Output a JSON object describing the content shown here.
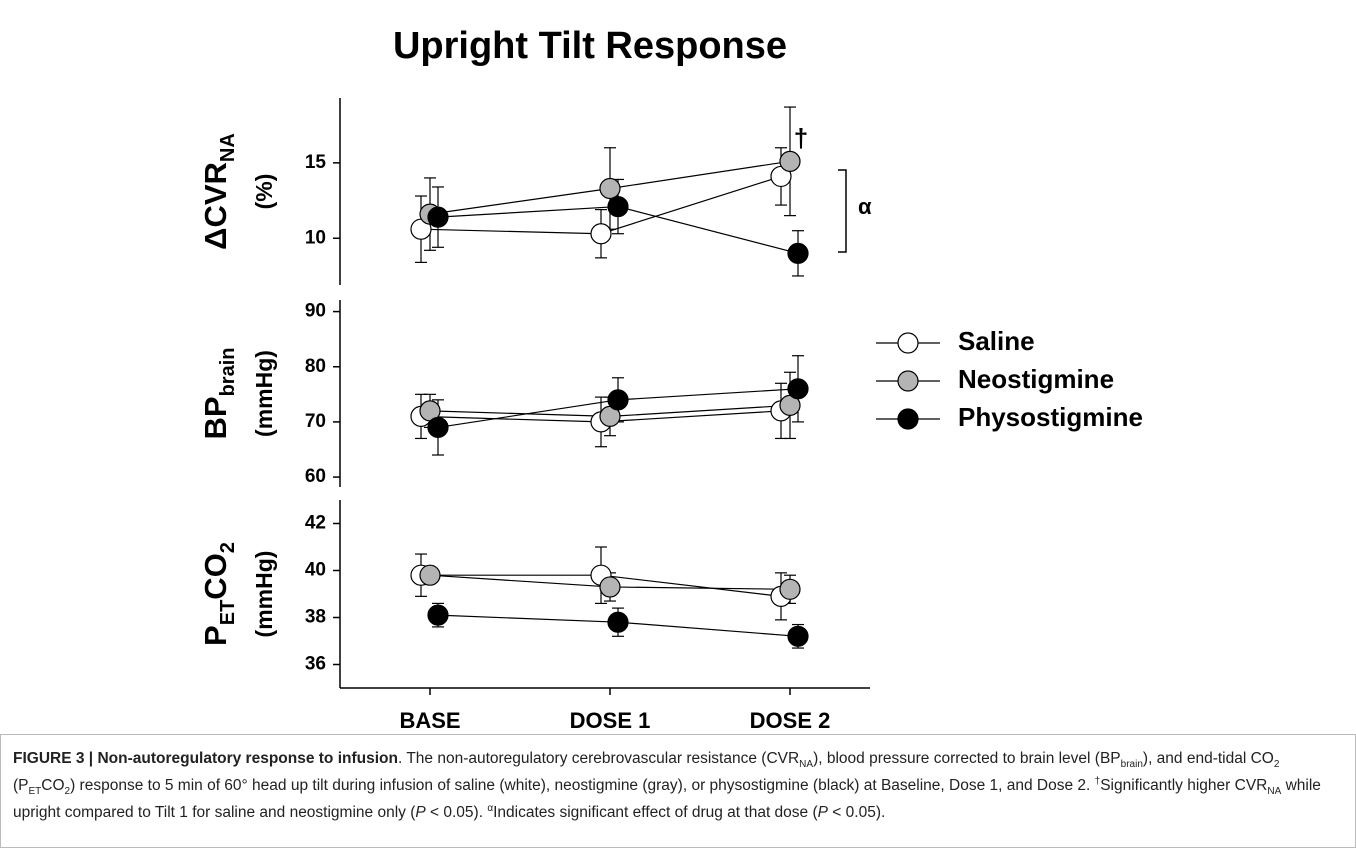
{
  "chart_data": [
    {
      "type": "line",
      "title": "Upright Tilt Response",
      "ylabel": [
        {
          "text": "ΔCVR"
        },
        {
          "text": "NA",
          "sub": true
        }
      ],
      "yunit": "(%)",
      "ylim": [
        6.9,
        19.3
      ],
      "yticks": [
        10,
        15
      ],
      "annotations": [
        "†",
        "α"
      ],
      "series": [
        {
          "color": "#ffffff",
          "values": [
            10.6,
            10.3,
            14.1
          ],
          "errors": [
            2.2,
            1.6,
            1.9
          ]
        },
        {
          "color": "#b4b4b4",
          "values": [
            11.6,
            13.3,
            15.1
          ],
          "errors": [
            2.4,
            2.7,
            3.6
          ]
        },
        {
          "color": "#000000",
          "values": [
            11.4,
            12.1,
            9.0
          ],
          "errors": [
            2.0,
            1.8,
            1.5
          ]
        }
      ]
    },
    {
      "type": "line",
      "ylabel": [
        {
          "text": "BP"
        },
        {
          "text": "brain",
          "sub": true
        }
      ],
      "yunit": "(mmHg)",
      "ylim": [
        58.2,
        92.1
      ],
      "yticks": [
        60,
        70,
        80,
        90
      ],
      "series": [
        {
          "name": "Saline",
          "color": "#ffffff",
          "values": [
            71,
            70,
            72
          ],
          "errors": [
            4,
            4.5,
            5
          ]
        },
        {
          "name": "Neostigmine",
          "color": "#b4b4b4",
          "values": [
            72,
            71,
            73
          ],
          "errors": [
            3,
            3.5,
            6
          ]
        },
        {
          "name": "Physostigmine",
          "color": "#000000",
          "values": [
            69,
            74,
            76
          ],
          "errors": [
            5,
            4,
            6
          ]
        }
      ]
    },
    {
      "type": "line",
      "ylabel": [
        {
          "text": "P"
        },
        {
          "text": "ET",
          "sub": true
        },
        {
          "text": "CO"
        },
        {
          "text": "2",
          "sub": true
        }
      ],
      "yunit": "(mmHg)",
      "categories": [
        "BASE",
        "DOSE 1",
        "DOSE 2"
      ],
      "ylim": [
        35,
        43
      ],
      "yticks": [
        36,
        38,
        40,
        42
      ],
      "series": [
        {
          "color": "#ffffff",
          "values": [
            39.8,
            39.8,
            38.9
          ],
          "errors": [
            0.9,
            1.2,
            1.0
          ]
        },
        {
          "color": "#b4b4b4",
          "values": [
            39.8,
            39.3,
            39.2
          ],
          "errors": [
            0.3,
            0.6,
            0.6
          ]
        },
        {
          "color": "#000000",
          "values": [
            38.1,
            37.8,
            37.2
          ],
          "errors": [
            0.5,
            0.6,
            0.5
          ]
        }
      ]
    }
  ],
  "caption": [
    {
      "text": "FIGURE 3",
      "style": "b"
    },
    {
      "text": " | ",
      "style": "b"
    },
    {
      "text": "Non-autoregulatory response to infusion",
      "style": "b"
    },
    {
      "text": ". The non-autoregulatory cerebrovascular resistance (CVR"
    },
    {
      "text": "NA",
      "style": "sub"
    },
    {
      "text": "), blood pressure corrected to brain level (BP"
    },
    {
      "text": "brain",
      "style": "sub"
    },
    {
      "text": "), and end-tidal CO"
    },
    {
      "text": "2",
      "style": "sub"
    },
    {
      "text": " (P"
    },
    {
      "text": "ET",
      "style": "sub"
    },
    {
      "text": "CO"
    },
    {
      "text": "2",
      "style": "sub"
    },
    {
      "text": ") response to 5 min of 60° head up tilt during infusion of saline (white), neostigmine (gray), or physostigmine (black) at Baseline, Dose 1, and Dose 2. "
    },
    {
      "text": "†",
      "style": "sup"
    },
    {
      "text": "Significantly higher CVR"
    },
    {
      "text": "NA",
      "style": "sub"
    },
    {
      "text": " while upright compared to Tilt 1 for saline and neostigmine only ("
    },
    {
      "text": "P",
      "style": "i"
    },
    {
      "text": " < 0.05). "
    },
    {
      "text": "α",
      "style": "sup"
    },
    {
      "text": "Indicates significant effect of drug at that dose ("
    },
    {
      "text": "P",
      "style": "i"
    },
    {
      "text": " < 0.05)."
    }
  ]
}
